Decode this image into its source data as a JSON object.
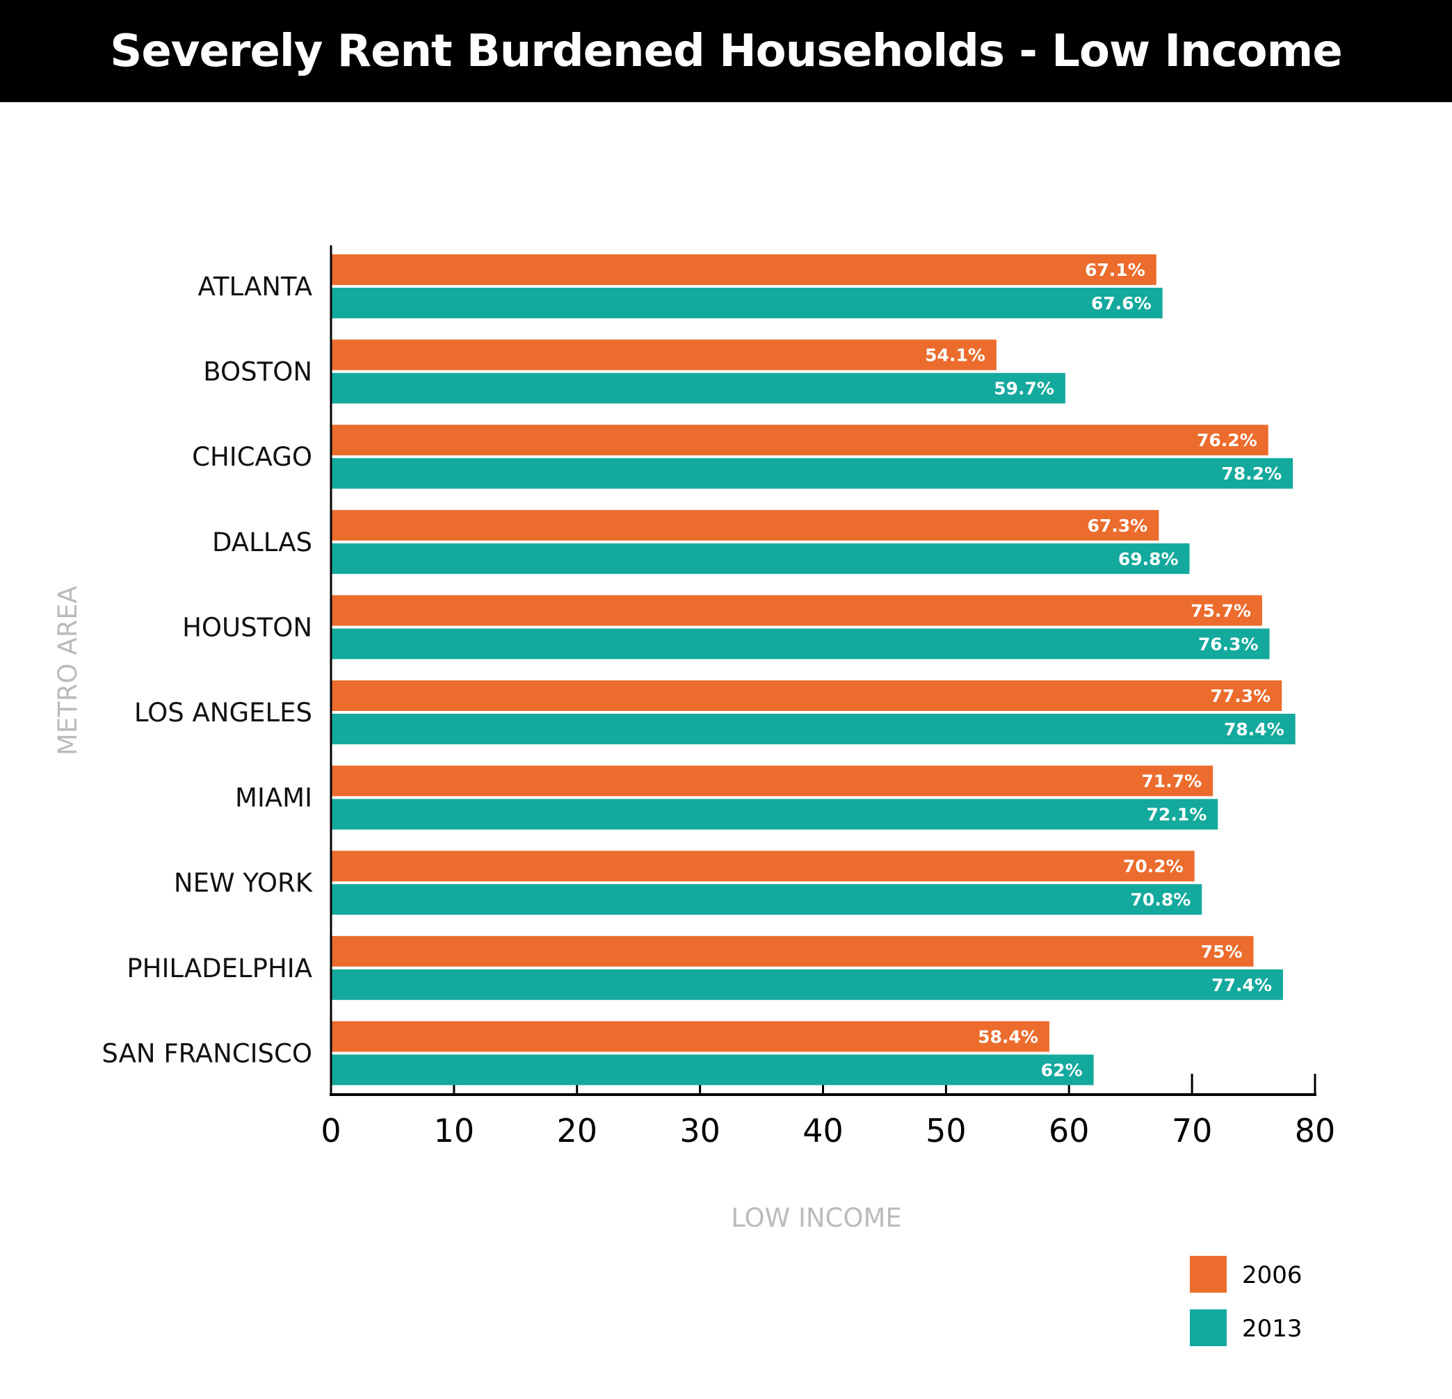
{
  "chart_data": {
    "type": "bar",
    "orientation": "horizontal",
    "title": "Severely Rent Burdened Households - Low Income",
    "xlabel": "LOW INCOME",
    "ylabel": "METRO AREA",
    "xlim": [
      0,
      80
    ],
    "xticks": [
      "0",
      "10",
      "20",
      "30",
      "40",
      "50",
      "60",
      "70",
      "80"
    ],
    "categories": [
      "ATLANTA",
      "BOSTON",
      "CHICAGO",
      "DALLAS",
      "HOUSTON",
      "LOS ANGELES",
      "MIAMI",
      "NEW YORK",
      "PHILADELPHIA",
      "SAN FRANCISCO"
    ],
    "series": [
      {
        "name": "2006",
        "color": "#EB6C2D",
        "values": [
          67.1,
          54.1,
          76.2,
          67.3,
          75.7,
          77.3,
          71.7,
          70.2,
          75,
          58.4
        ],
        "labels": [
          "67.1%",
          "54.1%",
          "76.2%",
          "67.3%",
          "75.7%",
          "77.3%",
          "71.7%",
          "70.2%",
          "75%",
          "58.4%"
        ]
      },
      {
        "name": "2013",
        "color": "#14A99D",
        "values": [
          67.6,
          59.7,
          78.2,
          69.8,
          76.3,
          78.4,
          72.1,
          70.8,
          77.4,
          62
        ],
        "labels": [
          "67.6%",
          "59.7%",
          "78.2%",
          "69.8%",
          "76.3%",
          "78.4%",
          "72.1%",
          "70.8%",
          "77.4%",
          "62%"
        ]
      }
    ],
    "grid": false,
    "legend": "bottom-right"
  }
}
